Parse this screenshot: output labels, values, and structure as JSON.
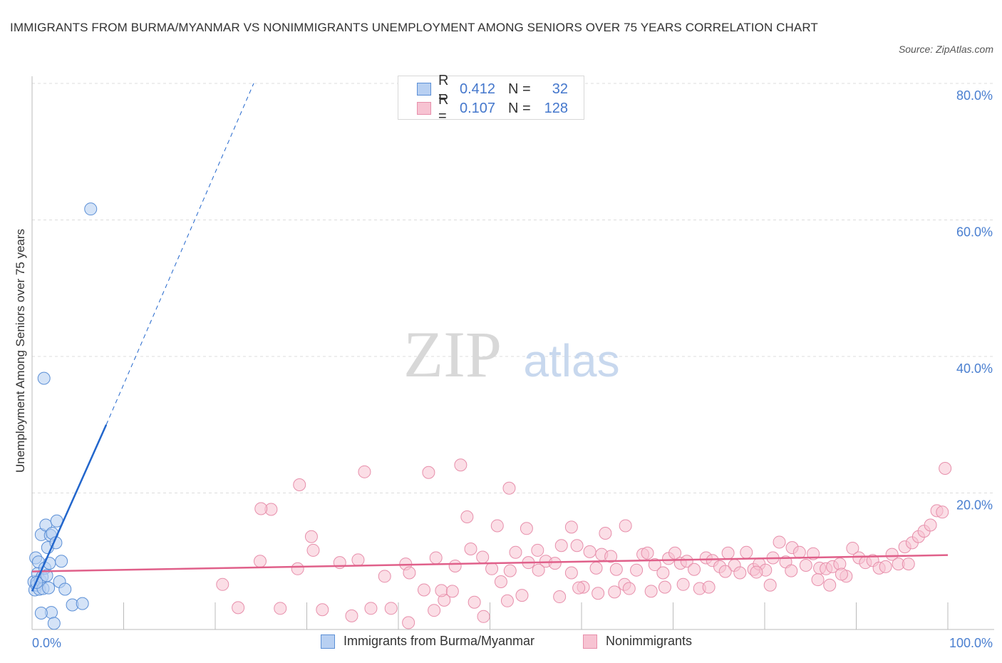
{
  "header": {
    "title": "IMMIGRANTS FROM BURMA/MYANMAR VS NONIMMIGRANTS UNEMPLOYMENT AMONG SENIORS OVER 75 YEARS CORRELATION CHART",
    "source": "Source: ZipAtlas.com"
  },
  "watermark": {
    "zip": "ZIP",
    "atlas": "atlas"
  },
  "colors": {
    "blue_fill": "#b8d0f2",
    "blue_stroke": "#5b8fd6",
    "blue_line": "#2266cc",
    "pink_fill": "#f7c3d2",
    "pink_stroke": "#e78fab",
    "pink_line": "#e0608a",
    "axis_text": "#4a7fd0",
    "grid": "#dddddd"
  },
  "legend_top": {
    "rows": [
      {
        "series": "blue",
        "r_label": "R =",
        "r_value": "0.412",
        "n_label": "N =",
        "n_value": "32"
      },
      {
        "series": "pink",
        "r_label": "R =",
        "r_value": "0.107",
        "n_label": "N =",
        "n_value": "128"
      }
    ]
  },
  "legend_bottom": {
    "items": [
      {
        "series": "blue",
        "label": "Immigrants from Burma/Myanmar"
      },
      {
        "series": "pink",
        "label": "Nonimmigrants"
      }
    ]
  },
  "chart_data": {
    "type": "scatter",
    "title": "IMMIGRANTS FROM BURMA/MYANMAR VS NONIMMIGRANTS UNEMPLOYMENT AMONG SENIORS OVER 75 YEARS CORRELATION CHART",
    "xlabel": "",
    "ylabel": "Unemployment Among Seniors over 75 years",
    "xlim": [
      0,
      100
    ],
    "ylim": [
      0,
      80
    ],
    "x_tick_labels": [
      {
        "value": 0,
        "label": "0.0%"
      },
      {
        "value": 100,
        "label": "100.0%"
      }
    ],
    "y_tick_labels": [
      {
        "value": 20,
        "label": "20.0%"
      },
      {
        "value": 40,
        "label": "40.0%"
      },
      {
        "value": 60,
        "label": "60.0%"
      },
      {
        "value": 80,
        "label": "80.0%"
      }
    ],
    "x_minor_ticks": [
      0,
      10,
      20,
      30,
      40,
      50,
      60,
      70,
      80,
      90,
      100
    ],
    "y_grid": [
      20,
      40,
      60,
      80
    ],
    "legend": "top-center",
    "series": [
      {
        "name": "Immigrants from Burma/Myanmar",
        "color": "blue",
        "R": 0.412,
        "N": 32,
        "points": [
          [
            6.4,
            61.6
          ],
          [
            1.3,
            36.8
          ],
          [
            0.2,
            7.0
          ],
          [
            0.3,
            5.8
          ],
          [
            0.4,
            10.5
          ],
          [
            0.5,
            6.5
          ],
          [
            0.6,
            8.2
          ],
          [
            0.7,
            9.9
          ],
          [
            0.8,
            5.9
          ],
          [
            0.9,
            7.2
          ],
          [
            1.0,
            13.9
          ],
          [
            1.1,
            7.7
          ],
          [
            1.2,
            6.0
          ],
          [
            1.4,
            9.0
          ],
          [
            1.5,
            15.3
          ],
          [
            1.6,
            7.9
          ],
          [
            1.7,
            12.0
          ],
          [
            1.8,
            6.1
          ],
          [
            1.9,
            9.7
          ],
          [
            2.0,
            13.8
          ],
          [
            2.1,
            2.5
          ],
          [
            2.2,
            14.1
          ],
          [
            2.4,
            0.9
          ],
          [
            2.6,
            12.7
          ],
          [
            2.7,
            15.9
          ],
          [
            3.0,
            7.0
          ],
          [
            3.2,
            10.0
          ],
          [
            3.6,
            5.9
          ],
          [
            4.4,
            3.6
          ],
          [
            5.5,
            3.8
          ],
          [
            1.0,
            2.4
          ],
          [
            0.5,
            6.9
          ]
        ],
        "trend": {
          "x0": 0,
          "y0": 5.6,
          "x1": 8.1,
          "y1": 30.0,
          "dash_x1": 24.2,
          "dash_y1": 80.0
        }
      },
      {
        "name": "Nonimmigrants",
        "color": "pink",
        "R": 0.107,
        "N": 128,
        "points": [
          [
            29.2,
            21.2
          ],
          [
            36.3,
            23.1
          ],
          [
            43.3,
            23.0
          ],
          [
            46.8,
            24.1
          ],
          [
            52.1,
            20.7
          ],
          [
            26.1,
            17.6
          ],
          [
            47.5,
            16.5
          ],
          [
            50.8,
            15.2
          ],
          [
            54.0,
            14.8
          ],
          [
            58.9,
            15.0
          ],
          [
            62.6,
            14.1
          ],
          [
            64.8,
            15.2
          ],
          [
            30.7,
            11.6
          ],
          [
            24.9,
            10.0
          ],
          [
            29.0,
            8.9
          ],
          [
            20.8,
            6.6
          ],
          [
            22.5,
            3.2
          ],
          [
            27.1,
            3.1
          ],
          [
            34.9,
            2.0
          ],
          [
            39.2,
            3.1
          ],
          [
            41.1,
            1.0
          ],
          [
            42.8,
            5.8
          ],
          [
            43.9,
            2.8
          ],
          [
            45.0,
            4.3
          ],
          [
            48.3,
            4.0
          ],
          [
            49.3,
            1.9
          ],
          [
            40.8,
            9.6
          ],
          [
            41.2,
            8.3
          ],
          [
            44.1,
            10.5
          ],
          [
            44.7,
            5.7
          ],
          [
            46.2,
            9.3
          ],
          [
            47.9,
            11.8
          ],
          [
            49.2,
            10.6
          ],
          [
            50.2,
            8.9
          ],
          [
            51.2,
            7.0
          ],
          [
            52.2,
            8.6
          ],
          [
            52.8,
            11.3
          ],
          [
            54.2,
            9.8
          ],
          [
            55.2,
            11.6
          ],
          [
            56.1,
            10.0
          ],
          [
            57.1,
            9.7
          ],
          [
            57.8,
            12.3
          ],
          [
            58.9,
            8.3
          ],
          [
            59.5,
            12.3
          ],
          [
            60.2,
            6.2
          ],
          [
            60.9,
            11.4
          ],
          [
            61.6,
            9.0
          ],
          [
            62.2,
            11.0
          ],
          [
            63.2,
            10.7
          ],
          [
            63.8,
            8.8
          ],
          [
            64.7,
            6.6
          ],
          [
            65.2,
            6.0
          ],
          [
            66.0,
            8.7
          ],
          [
            66.7,
            11.0
          ],
          [
            67.2,
            11.2
          ],
          [
            68.0,
            9.5
          ],
          [
            68.9,
            8.3
          ],
          [
            69.5,
            10.4
          ],
          [
            70.2,
            11.2
          ],
          [
            70.8,
            9.7
          ],
          [
            71.5,
            10.0
          ],
          [
            72.3,
            8.8
          ],
          [
            72.9,
            6.0
          ],
          [
            73.6,
            10.5
          ],
          [
            74.3,
            10.1
          ],
          [
            75.1,
            9.2
          ],
          [
            76.0,
            11.2
          ],
          [
            76.7,
            9.4
          ],
          [
            77.3,
            8.3
          ],
          [
            78.0,
            11.3
          ],
          [
            78.8,
            8.8
          ],
          [
            79.4,
            9.6
          ],
          [
            80.1,
            8.7
          ],
          [
            80.9,
            10.5
          ],
          [
            81.6,
            12.8
          ],
          [
            82.3,
            9.9
          ],
          [
            83.0,
            12.0
          ],
          [
            83.8,
            11.3
          ],
          [
            84.5,
            9.4
          ],
          [
            85.3,
            11.1
          ],
          [
            86.0,
            9.0
          ],
          [
            86.7,
            8.9
          ],
          [
            87.4,
            9.2
          ],
          [
            88.2,
            9.6
          ],
          [
            88.9,
            7.8
          ],
          [
            89.6,
            11.9
          ],
          [
            90.3,
            10.5
          ],
          [
            91.0,
            9.8
          ],
          [
            91.8,
            10.1
          ],
          [
            92.5,
            9.0
          ],
          [
            93.2,
            9.2
          ],
          [
            93.9,
            11.0
          ],
          [
            94.6,
            9.6
          ],
          [
            95.3,
            12.1
          ],
          [
            96.1,
            12.7
          ],
          [
            96.8,
            13.6
          ],
          [
            97.4,
            14.4
          ],
          [
            98.1,
            15.3
          ],
          [
            98.8,
            17.4
          ],
          [
            99.4,
            17.2
          ],
          [
            99.7,
            23.6
          ],
          [
            95.7,
            9.6
          ],
          [
            88.4,
            8.1
          ],
          [
            87.1,
            6.5
          ],
          [
            85.8,
            7.3
          ],
          [
            82.9,
            8.6
          ],
          [
            80.6,
            6.5
          ],
          [
            79.1,
            8.4
          ],
          [
            75.7,
            8.5
          ],
          [
            73.9,
            6.2
          ],
          [
            71.1,
            6.6
          ],
          [
            69.1,
            6.2
          ],
          [
            67.6,
            5.6
          ],
          [
            63.6,
            5.5
          ],
          [
            61.8,
            5.3
          ],
          [
            59.7,
            6.1
          ],
          [
            57.6,
            4.8
          ],
          [
            55.3,
            8.7
          ],
          [
            53.5,
            5.0
          ],
          [
            51.9,
            4.2
          ],
          [
            45.9,
            5.6
          ],
          [
            37.0,
            3.1
          ],
          [
            31.7,
            2.9
          ],
          [
            35.6,
            10.2
          ],
          [
            33.6,
            9.8
          ],
          [
            38.5,
            7.8
          ],
          [
            30.5,
            13.6
          ],
          [
            25.0,
            17.7
          ]
        ],
        "trend": {
          "x0": 0,
          "y0": 8.5,
          "x1": 100,
          "y1": 10.9
        }
      }
    ]
  }
}
